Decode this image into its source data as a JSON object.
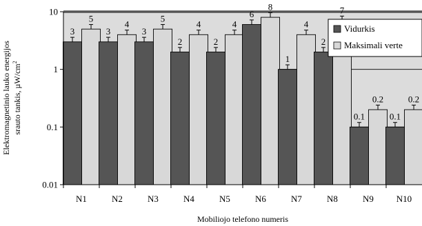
{
  "chart_data": {
    "type": "bar",
    "title": "",
    "xlabel": "Mobiliojo telefono numeris",
    "ylabel_line1": "Elektromagnetinio lauko energijos",
    "ylabel_line2": "srauto tankis, µW/cm",
    "ylabel_superscript": "2",
    "yscale": "log",
    "ylim": [
      0.01,
      10
    ],
    "yticks": [
      "0.01",
      "0.1",
      "1",
      "10"
    ],
    "categories": [
      "N1",
      "N2",
      "N3",
      "N4",
      "N5",
      "N6",
      "N7",
      "N8",
      "N9",
      "N10"
    ],
    "series": [
      {
        "name": "Vidurkis",
        "color": "#555555",
        "values": [
          3,
          3,
          3,
          2,
          2,
          6,
          1,
          2,
          0.1,
          0.1
        ],
        "labels": [
          "3",
          "3",
          "3",
          "2",
          "2",
          "6",
          "1",
          "2",
          "0.1",
          "0.1"
        ]
      },
      {
        "name": "Maksimali verte",
        "color": "#d8d8d8",
        "values": [
          5,
          4,
          5,
          4,
          4,
          8,
          4,
          7,
          0.2,
          0.2
        ],
        "labels": [
          "5",
          "4",
          "5",
          "4",
          "4",
          "8",
          "4",
          "7",
          "0.2",
          "0.2"
        ]
      }
    ],
    "error_bars": true,
    "legend_position": "top-right",
    "plot_background": "#dcdcdc",
    "grid": "horizontal-major"
  }
}
